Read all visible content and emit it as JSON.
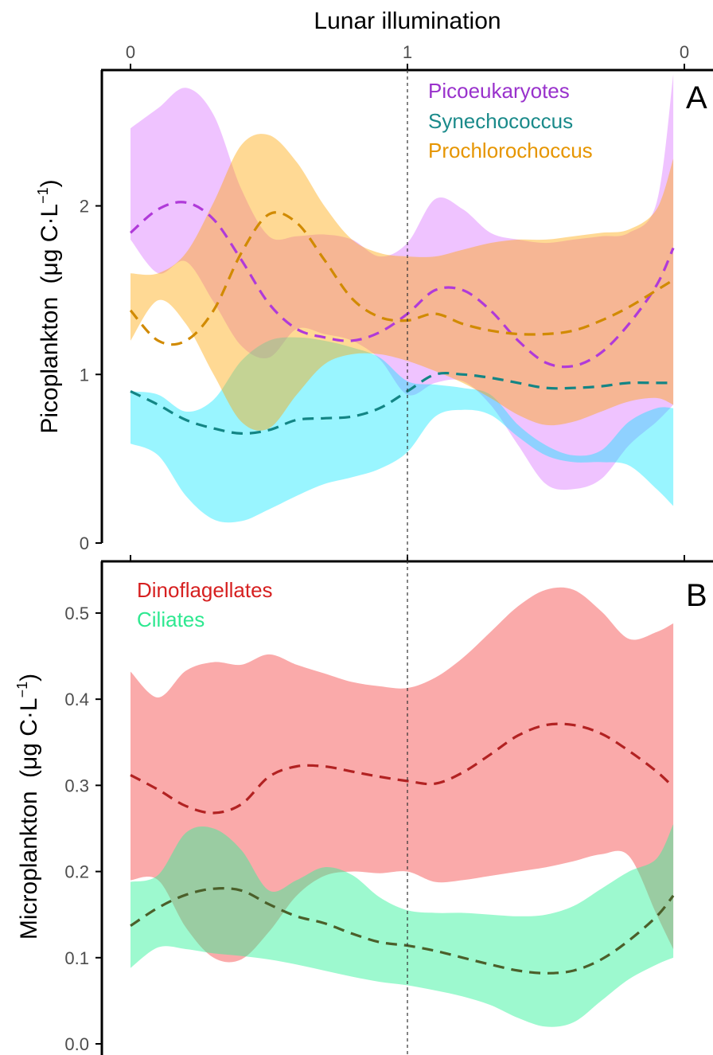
{
  "figure": {
    "top_axis_title": "Lunar illumination",
    "top_ticks": [
      {
        "x": 0,
        "label": "0"
      },
      {
        "x": 1,
        "label": "1"
      },
      {
        "x": 2,
        "label": "0"
      }
    ],
    "full_moon_x": 1
  },
  "chart_data": [
    {
      "panel": "A",
      "type": "line",
      "ylabel_main": "Picoplankton",
      "ylabel_unit_base": "(μg C·L",
      "ylabel_unit_sup": "−1",
      "ylabel_unit_end": ")",
      "xlim": [
        -0.05,
        2.05
      ],
      "ylim": [
        0,
        2.9
      ],
      "yticks": [
        {
          "v": 0,
          "label": "0"
        },
        {
          "v": 1,
          "label": "1"
        },
        {
          "v": 2,
          "label": "2"
        }
      ],
      "legend": "top-right",
      "series": [
        {
          "name": "Picoeukaryotes",
          "color": "#9932CC",
          "line_color": "#B03AD9",
          "fill": "#DA70FF",
          "fill_opacity": 0.42,
          "x": [
            0,
            0.1,
            0.2,
            0.3,
            0.4,
            0.5,
            0.6,
            0.7,
            0.8,
            0.9,
            1.0,
            1.1,
            1.2,
            1.3,
            1.4,
            1.5,
            1.6,
            1.7,
            1.8,
            1.9,
            1.96
          ],
          "mean": [
            1.84,
            1.98,
            2.02,
            1.92,
            1.68,
            1.42,
            1.27,
            1.22,
            1.2,
            1.25,
            1.36,
            1.5,
            1.5,
            1.38,
            1.2,
            1.07,
            1.05,
            1.13,
            1.3,
            1.53,
            1.75
          ],
          "lower": [
            1.8,
            1.6,
            1.67,
            1.43,
            1.17,
            1.1,
            1.27,
            1.24,
            1.2,
            1.09,
            0.88,
            0.95,
            0.96,
            0.82,
            0.58,
            0.35,
            0.32,
            0.38,
            0.58,
            0.72,
            0.82
          ],
          "upper": [
            2.46,
            2.58,
            2.7,
            2.54,
            2.1,
            1.82,
            1.82,
            1.83,
            1.8,
            1.7,
            1.78,
            2.04,
            1.98,
            1.84,
            1.8,
            1.78,
            1.8,
            1.82,
            1.84,
            2.02,
            2.78
          ]
        },
        {
          "name": "Synechococcus",
          "color": "#1A8A8A",
          "line_color": "#138585",
          "fill": "#00E5FF",
          "fill_opacity": 0.4,
          "x": [
            0,
            0.1,
            0.2,
            0.3,
            0.4,
            0.5,
            0.6,
            0.7,
            0.8,
            0.9,
            1.0,
            1.1,
            1.2,
            1.3,
            1.4,
            1.5,
            1.6,
            1.7,
            1.8,
            1.9,
            1.96
          ],
          "mean": [
            0.9,
            0.82,
            0.73,
            0.68,
            0.65,
            0.67,
            0.73,
            0.74,
            0.75,
            0.8,
            0.9,
            1.0,
            1.0,
            0.98,
            0.95,
            0.92,
            0.92,
            0.93,
            0.95,
            0.95,
            0.95
          ],
          "lower": [
            0.59,
            0.52,
            0.28,
            0.14,
            0.13,
            0.2,
            0.28,
            0.35,
            0.39,
            0.44,
            0.54,
            0.75,
            0.79,
            0.76,
            0.63,
            0.52,
            0.48,
            0.48,
            0.46,
            0.32,
            0.22
          ],
          "upper": [
            0.9,
            0.88,
            0.78,
            0.85,
            1.08,
            1.2,
            1.22,
            1.2,
            1.16,
            1.1,
            0.96,
            0.94,
            0.92,
            0.88,
            0.7,
            0.58,
            0.52,
            0.55,
            0.72,
            0.8,
            0.8
          ]
        },
        {
          "name": "Prochlorochoccus",
          "color": "#E69500",
          "line_color": "#D18A00",
          "fill": "#FFA500",
          "fill_opacity": 0.42,
          "x": [
            0,
            0.1,
            0.2,
            0.3,
            0.4,
            0.5,
            0.6,
            0.7,
            0.8,
            0.9,
            1.0,
            1.1,
            1.2,
            1.3,
            1.4,
            1.5,
            1.6,
            1.7,
            1.8,
            1.9,
            1.96
          ],
          "mean": [
            1.38,
            1.2,
            1.2,
            1.38,
            1.72,
            1.95,
            1.9,
            1.68,
            1.45,
            1.34,
            1.32,
            1.36,
            1.3,
            1.26,
            1.24,
            1.24,
            1.26,
            1.32,
            1.4,
            1.5,
            1.56
          ],
          "lower": [
            1.2,
            1.44,
            1.3,
            1.0,
            0.72,
            0.68,
            0.88,
            1.06,
            1.12,
            1.12,
            1.08,
            1.02,
            0.95,
            0.86,
            0.76,
            0.7,
            0.72,
            0.78,
            0.84,
            0.86,
            0.82
          ],
          "upper": [
            1.6,
            1.6,
            1.72,
            2.02,
            2.36,
            2.42,
            2.26,
            2.0,
            1.8,
            1.72,
            1.7,
            1.7,
            1.74,
            1.78,
            1.8,
            1.8,
            1.82,
            1.84,
            1.86,
            1.98,
            2.28
          ]
        }
      ]
    },
    {
      "panel": "B",
      "type": "line",
      "ylabel_main": "Microplankton",
      "ylabel_unit_base": "(μg C·L",
      "ylabel_unit_sup": "−1",
      "ylabel_unit_end": ")",
      "xlim": [
        -0.05,
        2.05
      ],
      "ylim": [
        0,
        0.56
      ],
      "yticks": [
        {
          "v": 0.0,
          "label": "0.0"
        },
        {
          "v": 0.1,
          "label": "0.1"
        },
        {
          "v": 0.2,
          "label": "0.2"
        },
        {
          "v": 0.3,
          "label": "0.3"
        },
        {
          "v": 0.4,
          "label": "0.4"
        },
        {
          "v": 0.5,
          "label": "0.5"
        }
      ],
      "legend": "top-left",
      "series": [
        {
          "name": "Dinoflagellates",
          "color": "#D62020",
          "line_color": "#B22222",
          "fill": "#F56464",
          "fill_opacity": 0.55,
          "x": [
            0,
            0.1,
            0.2,
            0.3,
            0.4,
            0.5,
            0.6,
            0.7,
            0.8,
            0.9,
            1.0,
            1.1,
            1.2,
            1.3,
            1.4,
            1.5,
            1.6,
            1.7,
            1.8,
            1.9,
            1.96
          ],
          "mean": [
            0.312,
            0.295,
            0.276,
            0.268,
            0.278,
            0.31,
            0.322,
            0.322,
            0.316,
            0.31,
            0.305,
            0.302,
            0.315,
            0.336,
            0.358,
            0.37,
            0.37,
            0.36,
            0.34,
            0.316,
            0.298
          ],
          "lower": [
            0.19,
            0.19,
            0.135,
            0.1,
            0.098,
            0.13,
            0.172,
            0.195,
            0.2,
            0.198,
            0.2,
            0.188,
            0.19,
            0.195,
            0.2,
            0.205,
            0.212,
            0.22,
            0.218,
            0.15,
            0.11
          ],
          "upper": [
            0.432,
            0.402,
            0.433,
            0.443,
            0.44,
            0.452,
            0.44,
            0.43,
            0.42,
            0.415,
            0.413,
            0.425,
            0.448,
            0.478,
            0.508,
            0.527,
            0.527,
            0.502,
            0.47,
            0.478,
            0.488
          ]
        },
        {
          "name": "Ciliates",
          "color": "#2EE890",
          "line_color": "#4B5F2A",
          "fill": "#33F29A",
          "fill_opacity": 0.48,
          "x": [
            0,
            0.1,
            0.2,
            0.3,
            0.4,
            0.5,
            0.6,
            0.7,
            0.8,
            0.9,
            1.0,
            1.1,
            1.2,
            1.3,
            1.4,
            1.5,
            1.6,
            1.7,
            1.8,
            1.9,
            1.96
          ],
          "mean": [
            0.137,
            0.158,
            0.173,
            0.18,
            0.178,
            0.162,
            0.148,
            0.14,
            0.128,
            0.118,
            0.114,
            0.108,
            0.1,
            0.092,
            0.085,
            0.082,
            0.085,
            0.098,
            0.12,
            0.148,
            0.172
          ],
          "lower": [
            0.088,
            0.112,
            0.11,
            0.105,
            0.102,
            0.098,
            0.092,
            0.085,
            0.078,
            0.072,
            0.068,
            0.062,
            0.055,
            0.045,
            0.03,
            0.02,
            0.025,
            0.05,
            0.075,
            0.092,
            0.1
          ],
          "upper": [
            0.188,
            0.196,
            0.245,
            0.25,
            0.225,
            0.178,
            0.19,
            0.205,
            0.196,
            0.17,
            0.155,
            0.152,
            0.152,
            0.15,
            0.148,
            0.15,
            0.16,
            0.18,
            0.2,
            0.215,
            0.255
          ]
        }
      ]
    }
  ]
}
